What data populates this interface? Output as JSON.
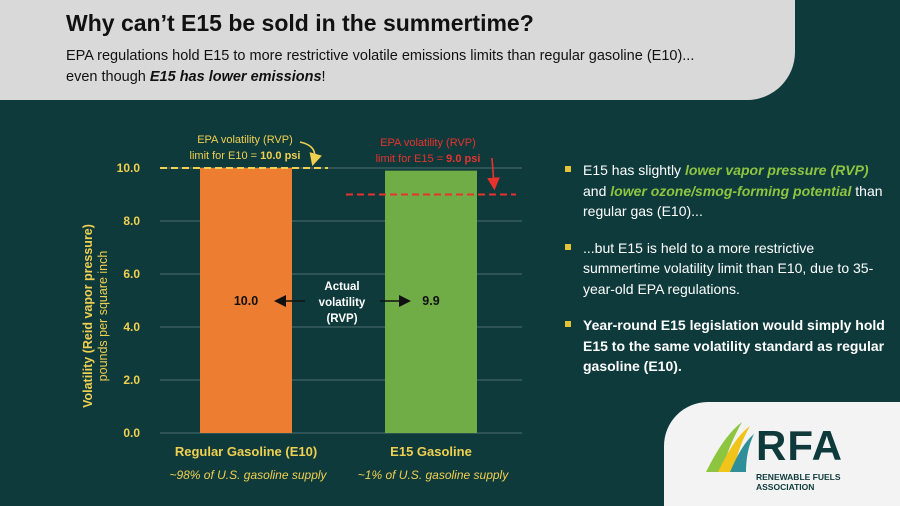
{
  "header": {
    "title": "Why can’t E15 be sold in the summertime?",
    "subtitle_line1": "EPA regulations hold E15 to more restrictive volatile emissions limits than regular gasoline (E10)...",
    "subtitle_pre": "even though ",
    "subtitle_emph": "E15 has lower emissions",
    "subtitle_post": "!"
  },
  "chart_data": {
    "type": "bar",
    "categories": [
      "Regular Gasoline (E10)",
      "E15 Gasoline"
    ],
    "values": [
      10.0,
      9.9
    ],
    "value_labels": [
      "10.0",
      "9.9"
    ],
    "category_notes": [
      "~98% of U.S. gasoline supply",
      "~1% of U.S. gasoline supply"
    ],
    "ylabel_line1": "Volatility (Reid vapor pressure)",
    "ylabel_line2": "pounds per square inch",
    "ylim": [
      0,
      10
    ],
    "yticks": [
      "0.0",
      "2.0",
      "4.0",
      "6.0",
      "8.0",
      "10.0"
    ],
    "grid": true,
    "colors": [
      "#ed7d31",
      "#70ad47"
    ],
    "annotations": {
      "limit_e10": {
        "value": 10.0,
        "line1": "EPA volatility (RVP)",
        "line2_pre": "limit for E10 = ",
        "line2_bold": "10.0 psi",
        "color": "#f0d050"
      },
      "limit_e15": {
        "value": 9.0,
        "line1": "EPA volatility (RVP)",
        "line2_pre": "limit for E15 = ",
        "line2_bold": "9.0 psi",
        "color": "#e8322d"
      },
      "actual": [
        "Actual",
        "volatility",
        "(RVP)"
      ]
    }
  },
  "bullets": {
    "b1_pre": "E15 has slightly ",
    "b1_em1": "lower vapor pressure (RVP)",
    "b1_mid": " and ",
    "b1_em2": "lower ozone/smog-forming potential",
    "b1_post": " than regular gas (E10)...",
    "b2": "...but E15 is held to a more restrictive summertime volatility limit than E10, due to 35-year-old EPA regulations.",
    "b3": "Year-round E15 legislation would simply hold E15 to the same volatility standard as regular gasoline (E10)."
  },
  "logo": {
    "word": "RFA",
    "sub": "RENEWABLE FUELS ASSOCIATION",
    "icon": "rfa-swoosh-icon"
  }
}
